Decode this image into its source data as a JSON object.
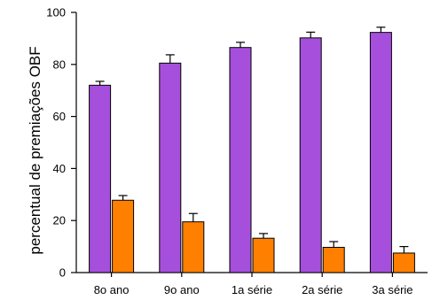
{
  "chart_data": {
    "type": "bar",
    "ylabel": "percentual de premiações OBF",
    "xlabel": "",
    "ylim": [
      0,
      100
    ],
    "yticks": [
      "0",
      "20",
      "40",
      "60",
      "80",
      "100"
    ],
    "categories": [
      "8o ano",
      "9o ano",
      "1a série",
      "2a série",
      "3a série"
    ],
    "series": [
      {
        "color": "#a64fdc",
        "values": [
          72,
          80.5,
          86.5,
          90.2,
          92.3
        ],
        "error": [
          1.5,
          3.2,
          2.0,
          2.2,
          2.0
        ]
      },
      {
        "color": "#ff7f00",
        "values": [
          27.8,
          19.5,
          13.2,
          9.7,
          7.5
        ],
        "error": [
          1.8,
          3.2,
          1.8,
          2.2,
          2.5
        ]
      }
    ],
    "error_bars": "top",
    "legend": false,
    "grid": false
  }
}
